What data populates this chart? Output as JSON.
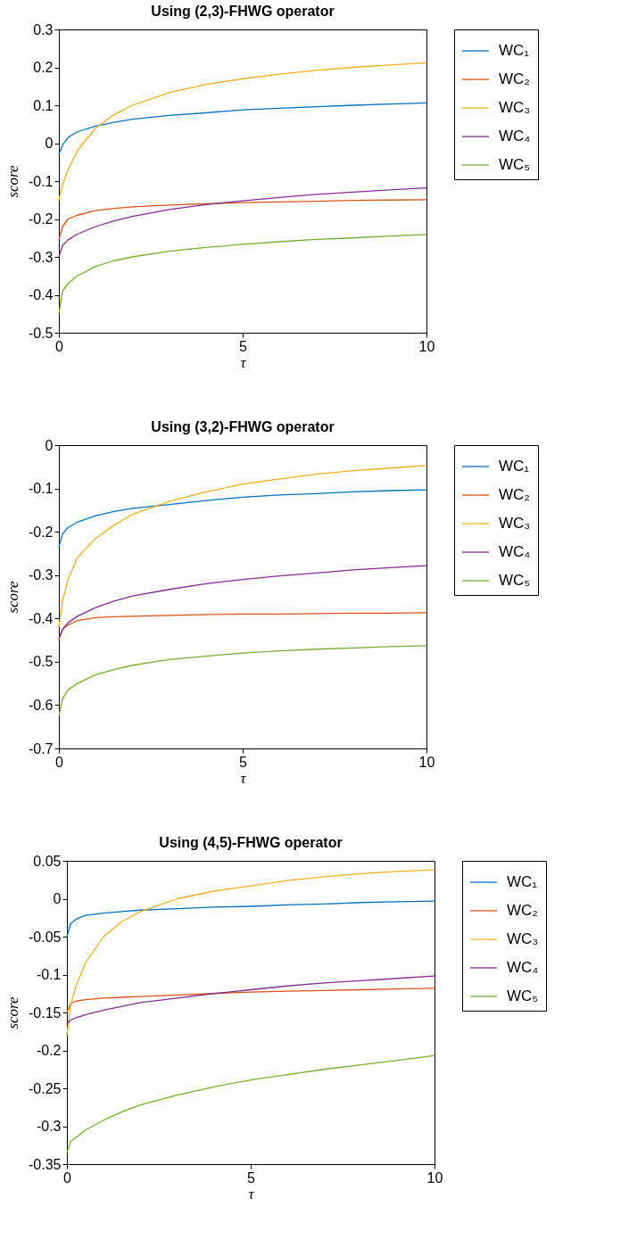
{
  "chart_data": [
    {
      "type": "line",
      "title": "Using (2,3)-FHWG operator",
      "xlabel": "τ",
      "ylabel": "score",
      "x": [
        0,
        0.1,
        0.25,
        0.5,
        1,
        1.5,
        2,
        3,
        4,
        5,
        6,
        7,
        8,
        9,
        10
      ],
      "xlim": [
        0,
        10
      ],
      "xticks": [
        0,
        5,
        10
      ],
      "ylim": [
        -0.5,
        0.3
      ],
      "yticks": [
        -0.5,
        -0.4,
        -0.3,
        -0.2,
        -0.1,
        0,
        0.1,
        0.2,
        0.3
      ],
      "grid": false,
      "legend": "top right",
      "series": [
        {
          "name": "WC₁",
          "color": "#0072bd",
          "values": [
            -0.03,
            -0.005,
            0.015,
            0.03,
            0.045,
            0.055,
            0.063,
            0.073,
            0.08,
            0.088,
            0.092,
            0.096,
            0.1,
            0.103,
            0.106
          ]
        },
        {
          "name": "WC₂",
          "color": "#d95319",
          "values": [
            -0.255,
            -0.22,
            -0.2,
            -0.19,
            -0.178,
            -0.172,
            -0.168,
            -0.163,
            -0.16,
            -0.157,
            -0.155,
            -0.153,
            -0.151,
            -0.15,
            -0.149
          ]
        },
        {
          "name": "WC₃",
          "color": "#edb120",
          "values": [
            -0.15,
            -0.11,
            -0.07,
            -0.02,
            0.04,
            0.075,
            0.1,
            0.133,
            0.155,
            0.17,
            0.182,
            0.192,
            0.2,
            0.206,
            0.212
          ]
        },
        {
          "name": "WC₄",
          "color": "#7e2f8e",
          "values": [
            -0.3,
            -0.27,
            -0.255,
            -0.24,
            -0.22,
            -0.205,
            -0.193,
            -0.175,
            -0.162,
            -0.152,
            -0.143,
            -0.135,
            -0.129,
            -0.123,
            -0.118
          ]
        },
        {
          "name": "WC₅",
          "color": "#77ac30",
          "values": [
            -0.45,
            -0.39,
            -0.37,
            -0.35,
            -0.325,
            -0.31,
            -0.3,
            -0.285,
            -0.275,
            -0.267,
            -0.26,
            -0.254,
            -0.25,
            -0.245,
            -0.241
          ]
        }
      ]
    },
    {
      "type": "line",
      "title": "Using (3,2)-FHWG operator",
      "xlabel": "τ",
      "ylabel": "score",
      "x": [
        0,
        0.1,
        0.25,
        0.5,
        1,
        1.5,
        2,
        3,
        4,
        5,
        6,
        7,
        8,
        9,
        10
      ],
      "xlim": [
        0,
        10
      ],
      "xticks": [
        0,
        5,
        10
      ],
      "ylim": [
        -0.7,
        0
      ],
      "yticks": [
        -0.7,
        -0.6,
        -0.5,
        -0.4,
        -0.3,
        -0.2,
        -0.1,
        0
      ],
      "grid": false,
      "legend": "top right",
      "series": [
        {
          "name": "WC₁",
          "color": "#0072bd",
          "values": [
            -0.235,
            -0.205,
            -0.19,
            -0.178,
            -0.163,
            -0.153,
            -0.146,
            -0.137,
            -0.128,
            -0.12,
            -0.115,
            -0.112,
            -0.108,
            -0.105,
            -0.103
          ]
        },
        {
          "name": "WC₂",
          "color": "#d95319",
          "values": [
            -0.45,
            -0.425,
            -0.415,
            -0.405,
            -0.398,
            -0.396,
            -0.395,
            -0.393,
            -0.391,
            -0.39,
            -0.39,
            -0.389,
            -0.388,
            -0.388,
            -0.387
          ]
        },
        {
          "name": "WC₃",
          "color": "#edb120",
          "values": [
            -0.42,
            -0.36,
            -0.31,
            -0.26,
            -0.215,
            -0.185,
            -0.16,
            -0.13,
            -0.108,
            -0.09,
            -0.078,
            -0.067,
            -0.059,
            -0.053,
            -0.047
          ]
        },
        {
          "name": "WC₄",
          "color": "#7e2f8e",
          "values": [
            -0.445,
            -0.425,
            -0.41,
            -0.395,
            -0.375,
            -0.36,
            -0.348,
            -0.333,
            -0.32,
            -0.31,
            -0.302,
            -0.295,
            -0.288,
            -0.283,
            -0.278
          ]
        },
        {
          "name": "WC₅",
          "color": "#77ac30",
          "values": [
            -0.625,
            -0.585,
            -0.565,
            -0.55,
            -0.53,
            -0.518,
            -0.508,
            -0.495,
            -0.487,
            -0.48,
            -0.475,
            -0.471,
            -0.468,
            -0.465,
            -0.463
          ]
        }
      ]
    },
    {
      "type": "line",
      "title": "Using (4,5)-FHWG operator",
      "xlabel": "τ",
      "ylabel": "score",
      "x": [
        0,
        0.1,
        0.25,
        0.5,
        1,
        1.5,
        2,
        3,
        4,
        5,
        6,
        7,
        8,
        9,
        10
      ],
      "xlim": [
        0,
        10
      ],
      "xticks": [
        0,
        5,
        10
      ],
      "ylim": [
        -0.35,
        0.05
      ],
      "yticks": [
        -0.35,
        -0.3,
        -0.25,
        -0.2,
        -0.15,
        -0.1,
        -0.05,
        0,
        0.05
      ],
      "grid": false,
      "legend": "top right",
      "series": [
        {
          "name": "WC₁",
          "color": "#0072bd",
          "values": [
            -0.05,
            -0.033,
            -0.027,
            -0.022,
            -0.019,
            -0.017,
            -0.015,
            -0.013,
            -0.011,
            -0.01,
            -0.008,
            -0.007,
            -0.005,
            -0.004,
            -0.003
          ]
        },
        {
          "name": "WC₂",
          "color": "#d95319",
          "values": [
            -0.15,
            -0.138,
            -0.135,
            -0.133,
            -0.131,
            -0.13,
            -0.129,
            -0.127,
            -0.125,
            -0.123,
            -0.122,
            -0.121,
            -0.12,
            -0.119,
            -0.118
          ]
        },
        {
          "name": "WC₃",
          "color": "#edb120",
          "values": [
            -0.18,
            -0.14,
            -0.115,
            -0.085,
            -0.05,
            -0.03,
            -0.017,
            0,
            0.01,
            0.017,
            0.024,
            0.029,
            0.033,
            0.036,
            0.038
          ]
        },
        {
          "name": "WC₄",
          "color": "#7e2f8e",
          "values": [
            -0.165,
            -0.16,
            -0.157,
            -0.153,
            -0.147,
            -0.142,
            -0.137,
            -0.131,
            -0.125,
            -0.12,
            -0.115,
            -0.111,
            -0.108,
            -0.105,
            -0.102
          ]
        },
        {
          "name": "WC₅",
          "color": "#77ac30",
          "values": [
            -0.335,
            -0.32,
            -0.315,
            -0.305,
            -0.292,
            -0.281,
            -0.272,
            -0.259,
            -0.248,
            -0.239,
            -0.232,
            -0.225,
            -0.219,
            -0.213,
            -0.207
          ]
        }
      ]
    }
  ]
}
